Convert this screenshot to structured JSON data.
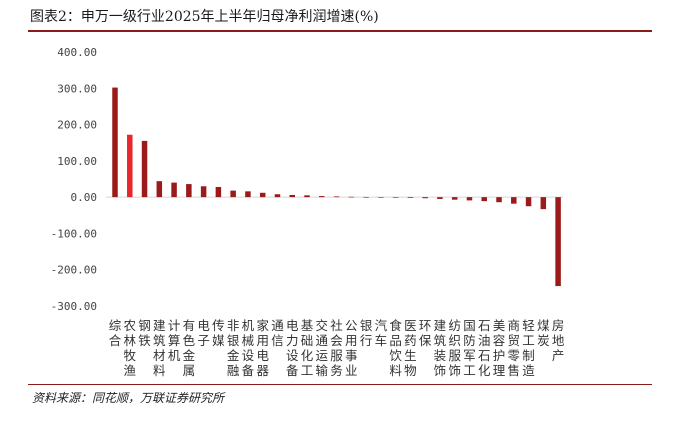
{
  "title": "图表2：申万一级行业2025年上半年归母净利润增速(%)",
  "source": "资料来源：同花顺，万联证券研究所",
  "colors": {
    "bar": "#9b1b1b",
    "highlight": "#e8262b",
    "rule": "#8b1a1a"
  },
  "chart_data": {
    "type": "bar",
    "title": "申万一级行业2025年上半年归母净利润增速(%)",
    "ylim": [
      -300,
      400
    ],
    "yticks": [
      "400.00",
      "300.00",
      "200.00",
      "100.00",
      "0.00",
      "-100.00",
      "-200.00",
      "-300.00"
    ],
    "grid": false,
    "highlight_index": 1,
    "categories": [
      "综合",
      "农林牧渔",
      "钢铁",
      "建筑材料",
      "计算机",
      "有色金属",
      "电子",
      "传媒",
      "非银金融",
      "机械设备",
      "家用电器",
      "通信",
      "电力设备",
      "基础化工",
      "交通运输",
      "社会服务",
      "公用事业",
      "银行",
      "汽车",
      "食品饮料",
      "医药生物",
      "环保",
      "建筑装饰",
      "纺织服饰",
      "国防军工",
      "石油石化",
      "美容护理",
      "商贸零售",
      "轻工制造",
      "煤炭",
      "房地产"
    ],
    "values": [
      302,
      172,
      155,
      44,
      40,
      36,
      30,
      28,
      18,
      16,
      12,
      8,
      6,
      5,
      3,
      2,
      1,
      0.5,
      0.3,
      -1,
      -2,
      -3,
      -5,
      -7,
      -9,
      -11,
      -14,
      -18,
      -25,
      -33,
      -245
    ]
  }
}
